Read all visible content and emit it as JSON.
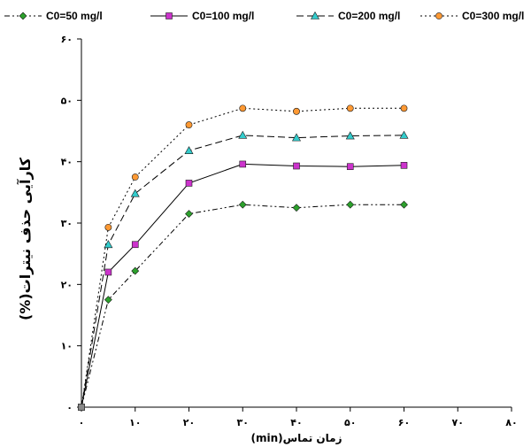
{
  "chart_data": {
    "type": "line",
    "xlabel": "زمان تماس(min)",
    "ylabel": "کارآیی حذف نیترات(%)",
    "xlim": [
      0,
      80
    ],
    "ylim": [
      0,
      60
    ],
    "x_ticks": [
      0,
      10,
      20,
      30,
      40,
      50,
      60,
      70,
      80
    ],
    "x_tick_labels": [
      "۰",
      "۱۰",
      "۲۰",
      "۳۰",
      "۴۰",
      "۵۰",
      "۶۰",
      "۷۰",
      "۸۰"
    ],
    "y_ticks": [
      0,
      10,
      20,
      30,
      40,
      50,
      60
    ],
    "y_tick_labels": [
      "۰",
      "۱۰",
      "۲۰",
      "۳۰",
      "۴۰",
      "۵۰",
      "۶۰"
    ],
    "legend_position": "top",
    "grid": false,
    "x": [
      0,
      5,
      10,
      20,
      30,
      40,
      50,
      60
    ],
    "series": [
      {
        "name": "C0=50 mg/l",
        "values": [
          0,
          17.5,
          22.2,
          31.5,
          33.0,
          32.5,
          33.0,
          33.0
        ],
        "color": "#2ca02c",
        "marker": "diamond",
        "dash": "6 3 2 3 2 3"
      },
      {
        "name": "C0=100 mg/l",
        "values": [
          0,
          22.0,
          26.5,
          36.5,
          39.6,
          39.3,
          39.2,
          39.4
        ],
        "color": "#cc33cc",
        "marker": "square",
        "dash": ""
      },
      {
        "name": "C0=200 mg/l",
        "values": [
          0,
          26.5,
          34.8,
          41.8,
          44.3,
          43.9,
          44.2,
          44.3
        ],
        "color": "#33cccc",
        "marker": "triangle",
        "dash": "8 4"
      },
      {
        "name": "C0=300 mg/l",
        "values": [
          0,
          29.3,
          37.5,
          46.0,
          48.7,
          48.2,
          48.7,
          48.7
        ],
        "color": "#ff9933",
        "marker": "circle",
        "dash": "2 3"
      }
    ]
  }
}
